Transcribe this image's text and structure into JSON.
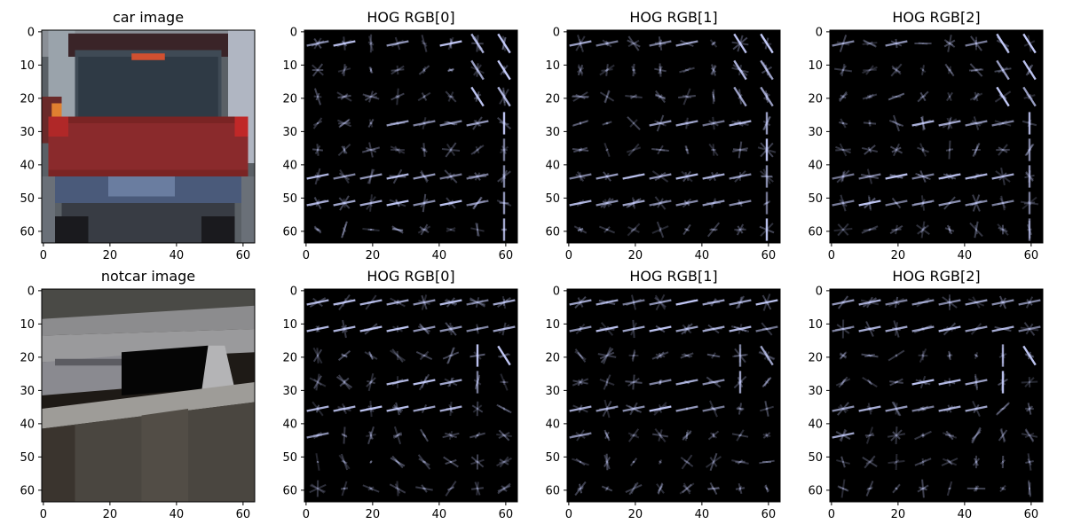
{
  "figure": {
    "background": "#ffffff",
    "hog_background": "#000000",
    "hog_stroke": "#c8cfff"
  },
  "chart_data": [
    {
      "type": "image",
      "title": "car image",
      "xlim": [
        0,
        63
      ],
      "ylim": [
        63,
        0
      ],
      "xticks": [
        0,
        20,
        40,
        60
      ],
      "yticks": [
        0,
        10,
        20,
        30,
        40,
        50,
        60
      ],
      "content": "photo of the rear of a red car"
    },
    {
      "type": "hog",
      "title": "HOG RGB[0]",
      "xlim": [
        0,
        63
      ],
      "ylim": [
        63,
        0
      ],
      "xticks": [
        0,
        20,
        40,
        60
      ],
      "yticks": [
        0,
        10,
        20,
        30,
        40,
        50,
        60
      ]
    },
    {
      "type": "hog",
      "title": "HOG RGB[1]",
      "xlim": [
        0,
        63
      ],
      "ylim": [
        63,
        0
      ],
      "xticks": [
        0,
        20,
        40,
        60
      ],
      "yticks": [
        0,
        10,
        20,
        30,
        40,
        50,
        60
      ]
    },
    {
      "type": "hog",
      "title": "HOG RGB[2]",
      "xlim": [
        0,
        63
      ],
      "ylim": [
        63,
        0
      ],
      "xticks": [
        0,
        20,
        40,
        60
      ],
      "yticks": [
        0,
        10,
        20,
        30,
        40,
        50,
        60
      ]
    },
    {
      "type": "image",
      "title": "notcar image",
      "xlim": [
        0,
        63
      ],
      "ylim": [
        63,
        0
      ],
      "xticks": [
        0,
        20,
        40,
        60
      ],
      "yticks": [
        0,
        10,
        20,
        30,
        40,
        50,
        60
      ],
      "content": "photo of a grey roadside guard rail / barrier"
    },
    {
      "type": "hog",
      "title": "HOG RGB[0]",
      "xlim": [
        0,
        63
      ],
      "ylim": [
        63,
        0
      ],
      "xticks": [
        0,
        20,
        40,
        60
      ],
      "yticks": [
        0,
        10,
        20,
        30,
        40,
        50,
        60
      ]
    },
    {
      "type": "hog",
      "title": "HOG RGB[1]",
      "xlim": [
        0,
        63
      ],
      "ylim": [
        63,
        0
      ],
      "xticks": [
        0,
        20,
        40,
        60
      ],
      "yticks": [
        0,
        10,
        20,
        30,
        40,
        50,
        60
      ]
    },
    {
      "type": "hog",
      "title": "HOG RGB[2]",
      "xlim": [
        0,
        63
      ],
      "ylim": [
        63,
        0
      ],
      "xticks": [
        0,
        20,
        40,
        60
      ],
      "yticks": [
        0,
        10,
        20,
        30,
        40,
        50,
        60
      ]
    }
  ]
}
